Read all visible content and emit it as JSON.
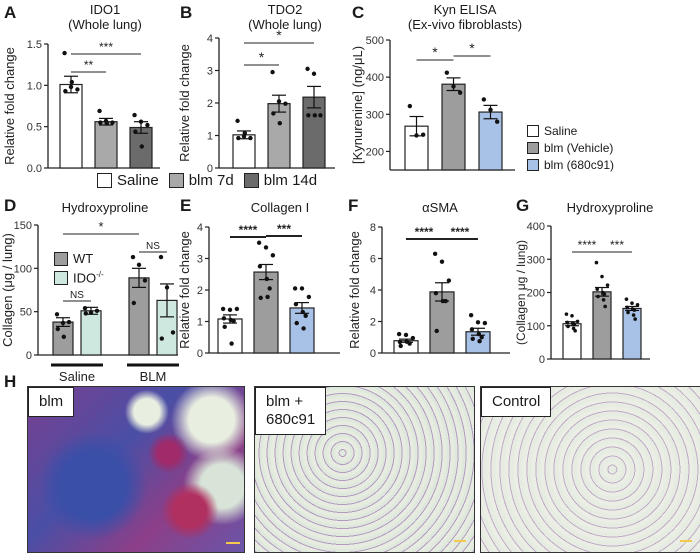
{
  "figure": {
    "panels": [
      "A",
      "B",
      "C",
      "D",
      "E",
      "F",
      "G",
      "H"
    ],
    "legend_AB": [
      {
        "label": "Saline",
        "color": "#ffffff"
      },
      {
        "label": "blm 7d",
        "color": "#a9a9a9"
      },
      {
        "label": "blm 14d",
        "color": "#6b6b6b"
      }
    ],
    "legend_CEFG": [
      {
        "label": "Saline",
        "color": "#ffffff"
      },
      {
        "label": "blm (Vehicle)",
        "color": "#9d9d9d"
      },
      {
        "label": "blm (680c91)",
        "color": "#a8c1e6"
      }
    ],
    "legend_D": [
      {
        "label": "WT",
        "color": "#9d9d9d"
      },
      {
        "label": "IDO-/-",
        "color": "#cfe8df"
      }
    ],
    "histology": [
      {
        "label": "blm"
      },
      {
        "label": "blm +\n680c91"
      },
      {
        "label": "Control"
      }
    ]
  },
  "chart_data": [
    {
      "panel": "A",
      "type": "bar",
      "title": "IDO1",
      "subtitle": "(Whole lung)",
      "ylabel": "Relative fold change",
      "ylim": [
        0,
        1.5
      ],
      "yticks": [
        "0.0",
        "0.5",
        "1.0",
        "1.5"
      ],
      "categories": [
        "Saline",
        "blm 7d",
        "blm 14d"
      ],
      "values": [
        1.01,
        0.56,
        0.49
      ],
      "sem": [
        0.1,
        0.04,
        0.07
      ],
      "points": [
        [
          1.39,
          0.98,
          0.95,
          0.93,
          1.04
        ],
        [
          0.69,
          0.57,
          0.55,
          0.55,
          0.54
        ],
        [
          0.64,
          0.56,
          0.52,
          0.44,
          0.26
        ]
      ],
      "significance": [
        {
          "from": 0,
          "to": 1,
          "label": "**"
        },
        {
          "from": 0,
          "to": 2,
          "label": "***"
        }
      ]
    },
    {
      "panel": "B",
      "type": "bar",
      "title": "TDO2",
      "subtitle": "(Whole lung)",
      "ylabel": "Relative fold change",
      "ylim": [
        0,
        4
      ],
      "yticks": [
        "0",
        "1",
        "2",
        "3",
        "4"
      ],
      "categories": [
        "Saline",
        "blm 7d",
        "blm 14d"
      ],
      "values": [
        1.02,
        1.98,
        2.18
      ],
      "sem": [
        0.12,
        0.26,
        0.33
      ],
      "points": [
        [
          1.45,
          0.97,
          0.92,
          0.92,
          1.07
        ],
        [
          2.95,
          2.05,
          1.98,
          1.68,
          1.38
        ],
        [
          3.05,
          2.9,
          1.62,
          1.62,
          1.62
        ]
      ],
      "significance": [
        {
          "from": 0,
          "to": 1,
          "label": "*"
        },
        {
          "from": 0,
          "to": 2,
          "label": "*"
        }
      ]
    },
    {
      "panel": "C",
      "type": "bar",
      "title": "Kyn ELISA",
      "subtitle": "(Ex-vivo fibroblasts)",
      "ylabel": "[Kynurenine] (ng/μL)",
      "ylim": [
        150,
        500
      ],
      "yticks": [
        "200",
        "300",
        "400",
        "500"
      ],
      "categories": [
        "Saline",
        "blm (Vehicle)",
        "blm (680c91)"
      ],
      "values": [
        268,
        381,
        306
      ],
      "sem": [
        26,
        17,
        18
      ],
      "points": [
        [
          322,
          243,
          245
        ],
        [
          412,
          375,
          358
        ],
        [
          340,
          312,
          280
        ]
      ],
      "significance": [
        {
          "from": 0,
          "to": 1,
          "label": "*"
        },
        {
          "from": 1,
          "to": 2,
          "label": "*"
        }
      ]
    },
    {
      "panel": "D",
      "type": "bar",
      "title": "Hydroxyproline",
      "ylabel": "Collagen (μg / lung)",
      "ylim": [
        0,
        150
      ],
      "yticks": [
        "0",
        "50",
        "100",
        "150"
      ],
      "groups": [
        "Saline",
        "BLM"
      ],
      "categories": [
        "Saline WT",
        "Saline IDO-/-",
        "BLM WT",
        "BLM IDO-/-"
      ],
      "values": [
        38,
        51,
        89,
        63
      ],
      "sem": [
        5,
        4,
        11,
        19
      ],
      "points": [
        [
          47,
          37,
          38,
          30,
          21
        ],
        [
          54,
          49,
          51,
          48
        ],
        [
          113,
          104,
          86,
          60
        ],
        [
          113,
          78,
          26,
          19
        ]
      ],
      "significance": [
        {
          "from": 0,
          "to": 2,
          "label": "*"
        },
        {
          "from": 0,
          "to": 1,
          "label": "NS"
        },
        {
          "from": 2,
          "to": 3,
          "label": "NS"
        }
      ]
    },
    {
      "panel": "E",
      "type": "bar",
      "title": "Collagen I",
      "ylabel": "Relative fold change",
      "ylim": [
        0,
        4
      ],
      "yticks": [
        "0",
        "1",
        "2",
        "3",
        "4"
      ],
      "categories": [
        "Saline",
        "blm (Vehicle)",
        "blm (680c91)"
      ],
      "values": [
        1.08,
        2.57,
        1.43
      ],
      "sem": [
        0.13,
        0.24,
        0.17
      ],
      "points": [
        [
          1.4,
          1.37,
          1.4,
          1.1,
          1.05,
          1.02,
          0.83,
          0.3
        ],
        [
          3.5,
          3.35,
          3.1,
          2.75,
          2.35,
          2.05,
          1.75,
          1.78
        ],
        [
          2.05,
          2.05,
          1.78,
          1.55,
          1.3,
          1.18,
          0.95,
          0.78
        ]
      ],
      "significance": [
        {
          "from": 0,
          "to": 1,
          "label": "****"
        },
        {
          "from": 1,
          "to": 2,
          "label": "***"
        }
      ]
    },
    {
      "panel": "F",
      "type": "bar",
      "title": "αSMA",
      "ylabel": "Relative fold change",
      "ylim": [
        0,
        8
      ],
      "yticks": [
        "0",
        "2",
        "4",
        "6",
        "8"
      ],
      "categories": [
        "Saline",
        "blm (Vehicle)",
        "blm (680c91)"
      ],
      "values": [
        0.78,
        3.88,
        1.35
      ],
      "sem": [
        0.1,
        0.58,
        0.22
      ],
      "points": [
        [
          1.2,
          1.15,
          0.95,
          0.7,
          0.72,
          0.6,
          0.45
        ],
        [
          6.3,
          5.8,
          4.6,
          3.8,
          3.3,
          3.3,
          1.4
        ],
        [
          2.4,
          1.95,
          1.9,
          1.5,
          1.2,
          1.0,
          0.9,
          0.75
        ]
      ],
      "significance": [
        {
          "from": 0,
          "to": 1,
          "label": "****"
        },
        {
          "from": 1,
          "to": 2,
          "label": "****"
        }
      ]
    },
    {
      "panel": "G",
      "type": "bar",
      "title": "Hydroxyproline",
      "ylabel": "(Collagen μg / lung)",
      "ylim": [
        0,
        400
      ],
      "yticks": [
        "0",
        "100",
        "200",
        "300",
        "400"
      ],
      "categories": [
        "Saline",
        "blm (Vehicle)",
        "blm (680c91)"
      ],
      "values": [
        106,
        202,
        152
      ],
      "sem": [
        6,
        13,
        6
      ],
      "points": [
        [
          135,
          130,
          113,
          110,
          108,
          104,
          98,
          92,
          85
        ],
        [
          290,
          248,
          222,
          210,
          200,
          195,
          188,
          178,
          158
        ],
        [
          180,
          168,
          163,
          155,
          150,
          147,
          140,
          132,
          120
        ]
      ],
      "significance": [
        {
          "from": 0,
          "to": 1,
          "label": "****"
        },
        {
          "from": 1,
          "to": 2,
          "label": "***"
        }
      ]
    }
  ]
}
